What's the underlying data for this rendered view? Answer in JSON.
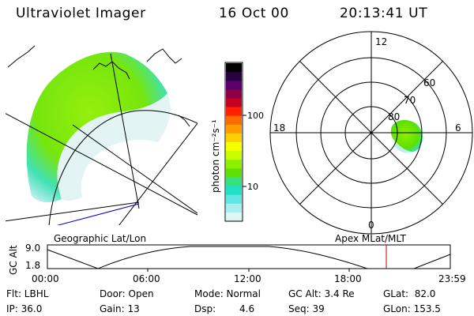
{
  "header": {
    "title": "Ultraviolet Imager",
    "date": "16 Oct 00",
    "time": "20:13:41 UT"
  },
  "left_panel": {
    "caption": "Geographic Lat/Lon"
  },
  "right_panel": {
    "caption": "Apex MLat/MLT",
    "mlt_labels": [
      "12",
      "18",
      "6",
      "0"
    ],
    "lat_labels": [
      "60",
      "70",
      "80"
    ]
  },
  "colorbar": {
    "ticks": [
      "100",
      "10"
    ],
    "unit_label": "photon cm⁻²s⁻¹",
    "colors": [
      "#000000",
      "#2a0040",
      "#5a006a",
      "#8c0048",
      "#c80020",
      "#ff2000",
      "#ff6a00",
      "#ff9d00",
      "#ffd000",
      "#f5ff00",
      "#c8ff00",
      "#8fef00",
      "#5fe000",
      "#36e080",
      "#22e0c8",
      "#60e6e6",
      "#a8eeee",
      "#dff6f6"
    ]
  },
  "altitude_plot": {
    "ylabel": "GC Alt",
    "ytick_top": "9.0",
    "ytick_bottom": "1.8",
    "xticks": [
      "00:00",
      "06:00",
      "12:00",
      "18:00",
      "23:59"
    ],
    "marker_color": "#cc0000"
  },
  "status": {
    "filter": "Flt: LBHL",
    "ip": "IP: 36.0",
    "door": "Door: Open",
    "gain": "Gain: 13",
    "mode": "Mode: Normal",
    "dsp_label": "Dsp:",
    "dsp_value": "4.6",
    "gc_alt": "GC Alt: 3.4 Re",
    "seq": "Seq: 39",
    "glat": "GLat:  82.0",
    "glon": "GLon: 153.5"
  }
}
